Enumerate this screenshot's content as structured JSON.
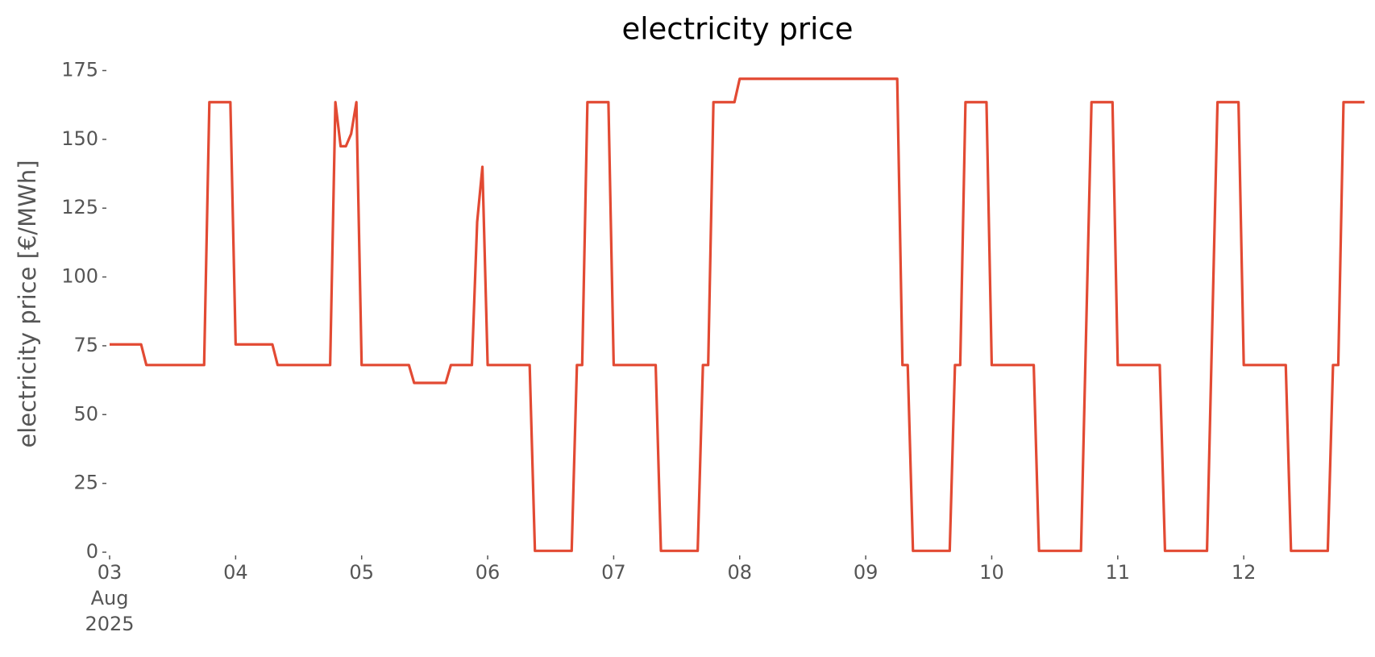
{
  "chart_data": {
    "type": "line",
    "title": "electricity price",
    "ylabel": "electricity price [€/MWh]",
    "x": [
      "2025-08-03T00:00",
      "2025-08-03T06:00",
      "2025-08-03T07:00",
      "2025-08-03T18:00",
      "2025-08-03T19:00",
      "2025-08-03T23:00",
      "2025-08-04T00:00",
      "2025-08-04T07:00",
      "2025-08-04T08:00",
      "2025-08-04T18:00",
      "2025-08-04T19:00",
      "2025-08-04T20:00",
      "2025-08-04T21:00",
      "2025-08-04T22:00",
      "2025-08-04T23:00",
      "2025-08-05T00:00",
      "2025-08-05T09:00",
      "2025-08-05T10:00",
      "2025-08-05T16:00",
      "2025-08-05T17:00",
      "2025-08-05T21:00",
      "2025-08-05T22:00",
      "2025-08-05T23:00",
      "2025-08-06T00:00",
      "2025-08-06T08:00",
      "2025-08-06T09:00",
      "2025-08-06T16:00",
      "2025-08-06T17:00",
      "2025-08-06T18:00",
      "2025-08-06T19:00",
      "2025-08-06T23:00",
      "2025-08-07T00:00",
      "2025-08-07T08:00",
      "2025-08-07T09:00",
      "2025-08-07T16:00",
      "2025-08-07T17:00",
      "2025-08-07T18:00",
      "2025-08-07T19:00",
      "2025-08-07T23:00",
      "2025-08-08T00:00",
      "2025-08-09T06:00",
      "2025-08-09T07:00",
      "2025-08-09T08:00",
      "2025-08-09T09:00",
      "2025-08-09T16:00",
      "2025-08-09T17:00",
      "2025-08-09T18:00",
      "2025-08-09T19:00",
      "2025-08-09T23:00",
      "2025-08-10T00:00",
      "2025-08-10T08:00",
      "2025-08-10T09:00",
      "2025-08-10T17:00",
      "2025-08-10T19:00",
      "2025-08-10T23:00",
      "2025-08-11T00:00",
      "2025-08-11T08:00",
      "2025-08-11T09:00",
      "2025-08-11T17:00",
      "2025-08-11T19:00",
      "2025-08-11T23:00",
      "2025-08-12T00:00",
      "2025-08-12T08:00",
      "2025-08-12T09:00",
      "2025-08-12T16:00",
      "2025-08-12T17:00",
      "2025-08-12T18:00",
      "2025-08-12T19:00",
      "2025-08-12T23:00"
    ],
    "series": [
      {
        "name": "electricity price",
        "color": "#e24a33",
        "values": [
          75.5,
          75.5,
          68,
          68,
          163.5,
          163.5,
          75.5,
          75.5,
          68,
          68,
          163.5,
          147.5,
          147.5,
          152,
          163.5,
          68,
          68,
          61.5,
          61.5,
          68,
          68,
          120,
          140,
          68,
          68,
          0.5,
          0.5,
          68,
          68,
          163.5,
          163.5,
          68,
          68,
          0.5,
          0.5,
          68,
          68,
          163.5,
          163.5,
          172,
          172,
          68,
          68,
          0.5,
          0.5,
          68,
          68,
          163.5,
          163.5,
          68,
          68,
          0.5,
          0.5,
          163.5,
          163.5,
          68,
          68,
          0.5,
          0.5,
          163.5,
          163.5,
          68,
          68,
          0.5,
          0.5,
          68,
          68,
          163.5,
          163.5
        ]
      }
    ],
    "xlim": [
      "2025-08-03T00:00",
      "2025-08-12T23:00"
    ],
    "xticks": [
      {
        "value": "2025-08-03",
        "label": "03 Aug 2025"
      },
      {
        "value": "2025-08-04",
        "label": "04"
      },
      {
        "value": "2025-08-05",
        "label": "05"
      },
      {
        "value": "2025-08-06",
        "label": "06"
      },
      {
        "value": "2025-08-07",
        "label": "07"
      },
      {
        "value": "2025-08-08",
        "label": "08"
      },
      {
        "value": "2025-08-09",
        "label": "09"
      },
      {
        "value": "2025-08-10",
        "label": "10"
      },
      {
        "value": "2025-08-11",
        "label": "11"
      },
      {
        "value": "2025-08-12",
        "label": "12"
      }
    ],
    "ylim": [
      0,
      175
    ],
    "yticks": [
      0,
      25,
      50,
      75,
      100,
      125,
      150,
      175
    ],
    "grid": false
  }
}
